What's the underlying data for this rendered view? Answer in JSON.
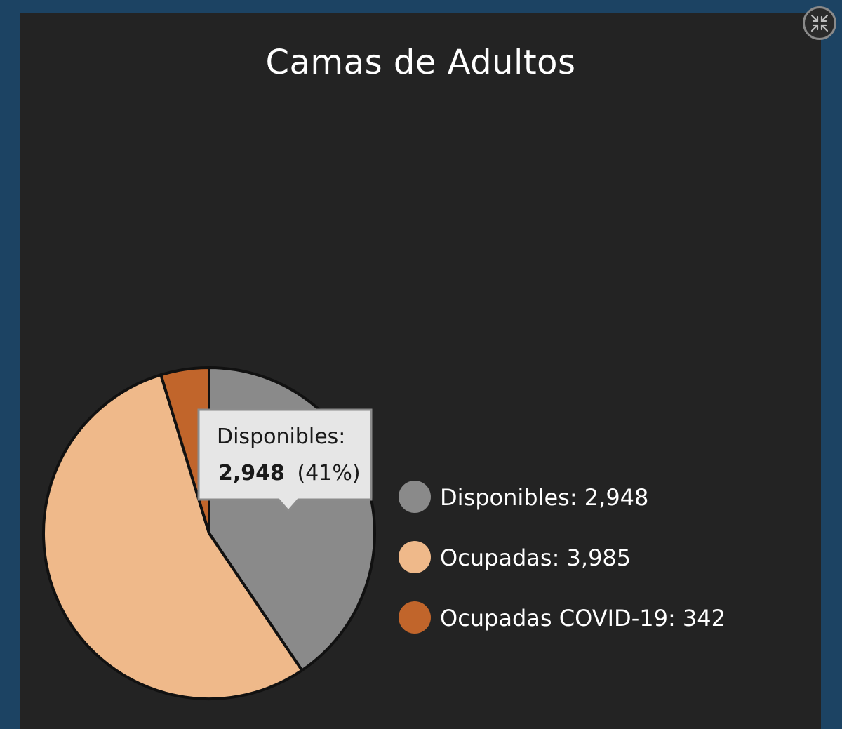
{
  "chart_data": {
    "type": "pie",
    "title": "Camas de Adultos",
    "slices": [
      {
        "label": "Disponibles",
        "value": 2948,
        "display": "2,948",
        "color": "#8a8a8a"
      },
      {
        "label": "Ocupadas",
        "value": 3985,
        "display": "3,985",
        "color": "#efb98a"
      },
      {
        "label": "Ocupadas COVID-19",
        "value": 342,
        "display": "342",
        "color": "#c1652b"
      }
    ],
    "legend_position": "right"
  },
  "tooltip": {
    "label": "Disponibles:",
    "value": "2,948",
    "percent": "(41%)"
  },
  "controls": {
    "collapse_icon": "collapse-arrows-icon"
  }
}
